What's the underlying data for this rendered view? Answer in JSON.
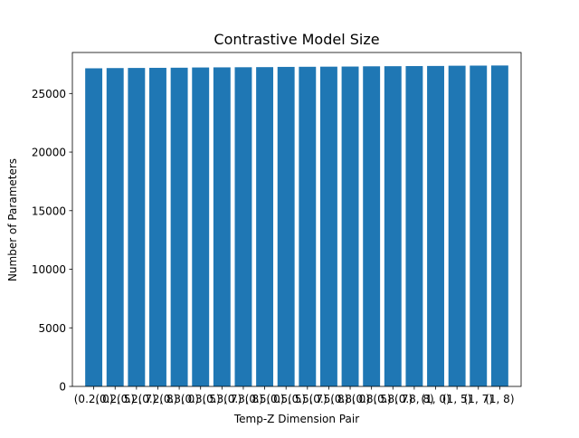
{
  "chart_data": {
    "type": "bar",
    "title": "Contrastive Model Size",
    "xlabel": "Temp-Z Dimension Pair",
    "ylabel": "Number of Parameters",
    "ylim": [
      0,
      28500
    ],
    "yticks": [
      0,
      5000,
      10000,
      15000,
      20000,
      25000
    ],
    "bar_color": "#1f77b4",
    "grid": false,
    "categories": [
      "(0.2, 0)",
      "(0.2, 5)",
      "(0.2, 7)",
      "(0.2, 8)",
      "(0.3, 0)",
      "(0.3, 5)",
      "(0.3, 7)",
      "(0.3, 8)",
      "(0.5, 0)",
      "(0.5, 5)",
      "(0.5, 7)",
      "(0.5, 8)",
      "(0.8, 0)",
      "(0.8, 5)",
      "(0.8, 7)",
      "(0.8, 8)",
      "(1, 0)",
      "(1, 5)",
      "(1, 7)",
      "(1, 8)"
    ],
    "values": [
      27150,
      27170,
      27180,
      27190,
      27200,
      27220,
      27230,
      27240,
      27250,
      27270,
      27280,
      27290,
      27300,
      27320,
      27330,
      27340,
      27350,
      27370,
      27380,
      27390
    ]
  }
}
